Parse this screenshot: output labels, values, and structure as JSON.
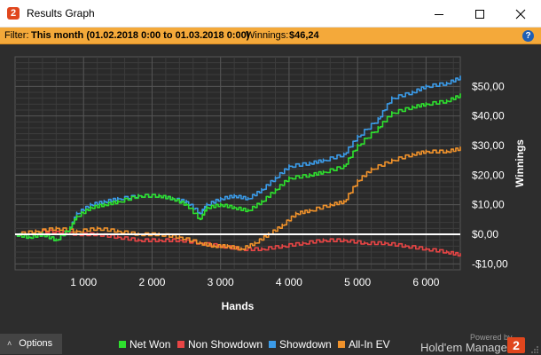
{
  "window": {
    "title": "Results Graph",
    "logo_glyph": "2",
    "controls": [
      "minimize-icon",
      "maximize-icon",
      "close-icon"
    ]
  },
  "filter": {
    "label": "Filter:",
    "value": "This month (01.02.2018 0:00 to 01.03.2018 0:00)",
    "winnings_label": "Winnings:",
    "winnings_value": "$46,24",
    "help_glyph": "?"
  },
  "chart_data": {
    "type": "line",
    "xlabel": "Hands",
    "ylabel": "Winnings",
    "xlim": [
      0,
      6500
    ],
    "ylim": [
      -12,
      60
    ],
    "x_ticks": [
      1000,
      2000,
      3000,
      4000,
      5000,
      6000
    ],
    "x_tick_labels": [
      "1 000",
      "2 000",
      "3 000",
      "4 000",
      "5 000",
      "6 000"
    ],
    "y_ticks": [
      -10,
      0,
      10,
      20,
      30,
      40,
      50
    ],
    "y_tick_labels": [
      "-$10,00",
      "$0,00",
      "$10,00",
      "$20,00",
      "$30,00",
      "$40,00",
      "$50,00"
    ],
    "grid": true,
    "legend_position": "bottom",
    "series": [
      {
        "name": "Net Won",
        "color": "#2ee02e",
        "x": [
          0,
          200,
          400,
          600,
          800,
          900,
          1100,
          1300,
          1500,
          1800,
          2100,
          2300,
          2500,
          2700,
          2800,
          3000,
          3200,
          3400,
          3600,
          3800,
          4000,
          4300,
          4500,
          4800,
          5000,
          5300,
          5500,
          5800,
          6000,
          6300,
          6500
        ],
        "values": [
          0,
          -1,
          0,
          -2,
          2,
          6,
          9,
          10,
          11,
          13,
          13,
          12,
          10,
          5,
          9,
          10,
          9,
          8,
          11,
          15,
          19,
          20,
          21,
          23,
          30,
          36,
          41,
          43,
          44,
          45,
          47
        ]
      },
      {
        "name": "Non Showdown",
        "color": "#e84545",
        "x": [
          0,
          300,
          600,
          900,
          1200,
          1500,
          1800,
          2100,
          2400,
          2700,
          3000,
          3300,
          3600,
          3900,
          4200,
          4500,
          4800,
          5100,
          5400,
          5700,
          6000,
          6300,
          6500
        ],
        "values": [
          0,
          1,
          1,
          0,
          0,
          -1,
          -2,
          -2,
          -2,
          -3,
          -4,
          -5,
          -5,
          -4,
          -3,
          -2,
          -2,
          -3,
          -3,
          -4,
          -5,
          -6,
          -7
        ]
      },
      {
        "name": "Showdown",
        "color": "#3b9be8",
        "x": [
          0,
          200,
          400,
          600,
          800,
          900,
          1100,
          1300,
          1500,
          1800,
          2100,
          2300,
          2500,
          2700,
          2800,
          3000,
          3200,
          3400,
          3600,
          3800,
          4000,
          4300,
          4500,
          4800,
          5000,
          5300,
          5500,
          5800,
          6000,
          6300,
          6500
        ],
        "values": [
          0,
          -1,
          0,
          -2,
          2,
          7,
          10,
          11,
          12,
          13,
          13,
          12,
          11,
          7,
          10,
          12,
          13,
          12,
          15,
          19,
          23,
          24,
          25,
          27,
          33,
          39,
          46,
          48,
          50,
          51,
          53
        ]
      },
      {
        "name": "All-In EV",
        "color": "#f0922b",
        "x": [
          0,
          300,
          600,
          900,
          1200,
          1500,
          1800,
          2100,
          2400,
          2700,
          2900,
          3100,
          3300,
          3500,
          3700,
          3900,
          4100,
          4300,
          4600,
          4800,
          5000,
          5200,
          5500,
          5800,
          6000,
          6300,
          6500
        ],
        "values": [
          0,
          1,
          2,
          1,
          2,
          1,
          0,
          0,
          -1,
          -3,
          -4,
          -4,
          -5,
          -3,
          0,
          3,
          7,
          8,
          10,
          11,
          18,
          22,
          25,
          27,
          28,
          28,
          29
        ]
      }
    ]
  },
  "bottom": {
    "options_label": "Options",
    "powered_by": "Powered by",
    "brand_name": "Hold'em Manager",
    "brand_glyph": "2"
  }
}
